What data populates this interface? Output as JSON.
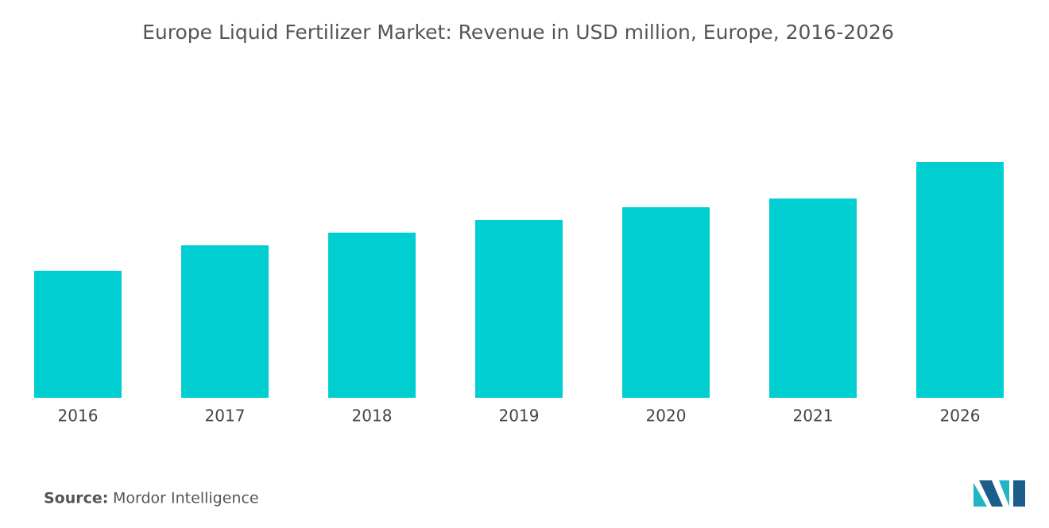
{
  "chart_data": {
    "type": "bar",
    "title": "Europe Liquid Fertilizer Market: Revenue in USD million, Europe, 2016-2026",
    "categories": [
      "2016",
      "2017",
      "2018",
      "2019",
      "2020",
      "2021",
      "2026"
    ],
    "values": [
      160,
      192,
      208,
      224,
      240,
      251,
      297
    ],
    "color": "#00ced1"
  },
  "source": {
    "label": "Source:",
    "text": "Mordor Intelligence"
  }
}
